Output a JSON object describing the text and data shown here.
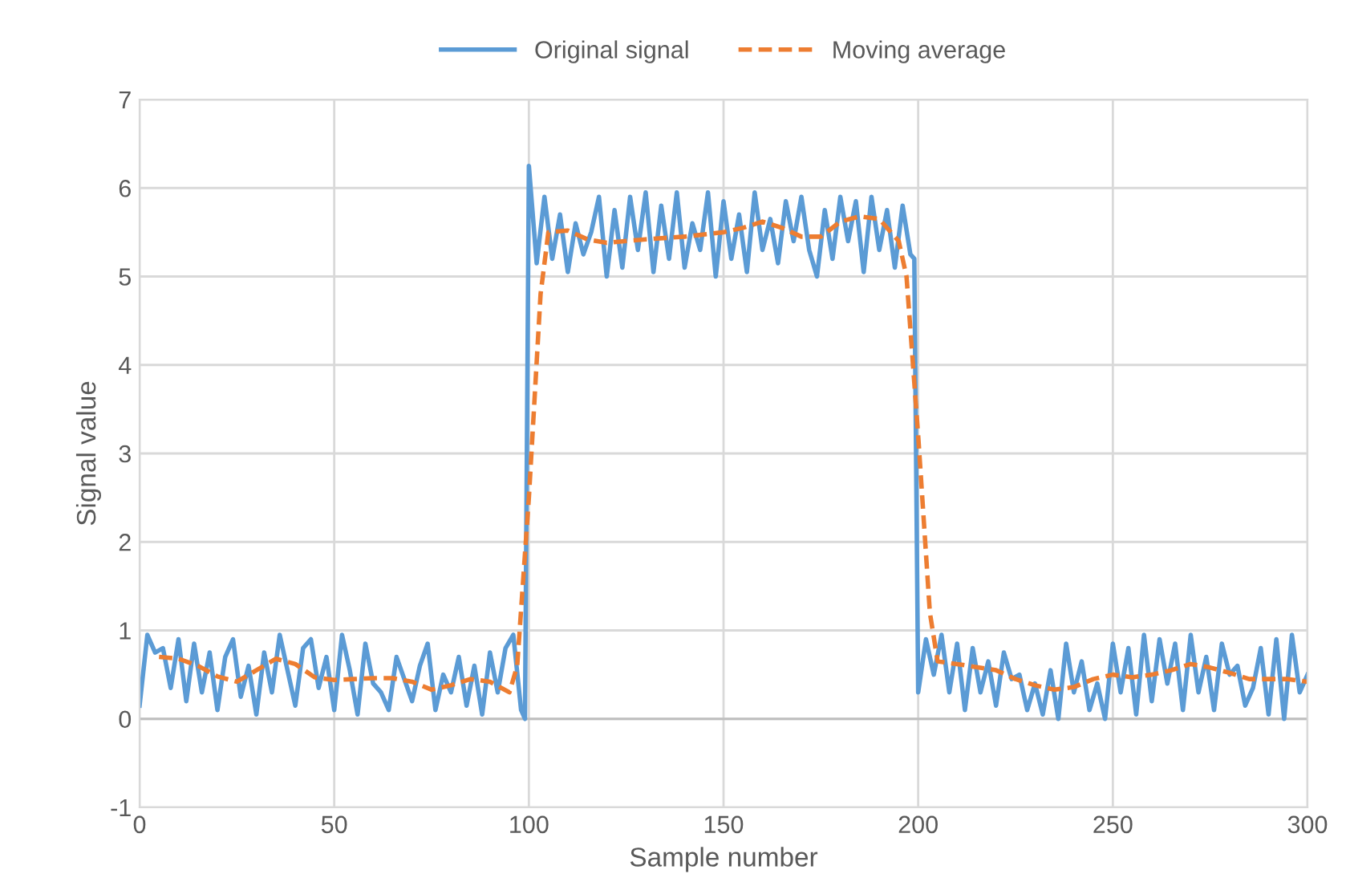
{
  "chart_data": {
    "type": "line",
    "xlabel": "Sample number",
    "ylabel": "Signal value",
    "xlim": [
      0,
      300
    ],
    "xticks": [
      0,
      50,
      100,
      150,
      200,
      250,
      300
    ],
    "ylim": [
      -1,
      7
    ],
    "yticks": [
      -1,
      0,
      1,
      2,
      3,
      4,
      5,
      6,
      7
    ],
    "grid": true,
    "legend": "top",
    "marker": "none",
    "series": [
      {
        "name": "Original signal",
        "color": "#5b9bd5",
        "line_style": "solid",
        "x": [
          0,
          2,
          4,
          6,
          8,
          10,
          12,
          14,
          16,
          18,
          20,
          22,
          24,
          26,
          28,
          30,
          32,
          34,
          36,
          38,
          40,
          42,
          44,
          46,
          48,
          50,
          52,
          54,
          56,
          58,
          60,
          62,
          64,
          66,
          68,
          70,
          72,
          74,
          76,
          78,
          80,
          82,
          84,
          86,
          88,
          90,
          92,
          94,
          96,
          98,
          99,
          100,
          102,
          104,
          106,
          108,
          110,
          112,
          114,
          116,
          118,
          120,
          122,
          124,
          126,
          128,
          130,
          132,
          134,
          136,
          138,
          140,
          142,
          144,
          146,
          148,
          150,
          152,
          154,
          156,
          158,
          160,
          162,
          164,
          166,
          168,
          170,
          172,
          174,
          176,
          178,
          180,
          182,
          184,
          186,
          188,
          190,
          192,
          194,
          196,
          198,
          199,
          200,
          202,
          204,
          206,
          208,
          210,
          212,
          214,
          216,
          218,
          220,
          222,
          224,
          226,
          228,
          230,
          232,
          234,
          236,
          238,
          240,
          242,
          244,
          246,
          248,
          250,
          252,
          254,
          256,
          258,
          260,
          262,
          264,
          266,
          268,
          270,
          272,
          274,
          276,
          278,
          280,
          282,
          284,
          286,
          288,
          290,
          292,
          294,
          296,
          298,
          300
        ],
        "values": [
          0.15,
          0.95,
          0.75,
          0.8,
          0.35,
          0.9,
          0.2,
          0.85,
          0.3,
          0.75,
          0.1,
          0.7,
          0.9,
          0.25,
          0.6,
          0.05,
          0.75,
          0.3,
          0.95,
          0.55,
          0.15,
          0.8,
          0.9,
          0.35,
          0.7,
          0.1,
          0.95,
          0.55,
          0.05,
          0.85,
          0.4,
          0.3,
          0.1,
          0.7,
          0.45,
          0.2,
          0.6,
          0.85,
          0.1,
          0.5,
          0.3,
          0.7,
          0.15,
          0.6,
          0.05,
          0.75,
          0.3,
          0.8,
          0.95,
          0.1,
          0.0,
          6.25,
          5.15,
          5.9,
          5.2,
          5.7,
          5.05,
          5.6,
          5.25,
          5.5,
          5.9,
          5.0,
          5.75,
          5.1,
          5.9,
          5.3,
          5.95,
          5.05,
          5.8,
          5.2,
          5.95,
          5.1,
          5.6,
          5.3,
          5.95,
          5.0,
          5.85,
          5.2,
          5.7,
          5.05,
          5.95,
          5.3,
          5.65,
          5.15,
          5.85,
          5.4,
          5.9,
          5.3,
          5.0,
          5.75,
          5.2,
          5.9,
          5.4,
          5.85,
          5.05,
          5.9,
          5.3,
          5.75,
          5.1,
          5.8,
          5.25,
          5.2,
          0.3,
          0.9,
          0.5,
          0.95,
          0.3,
          0.85,
          0.1,
          0.8,
          0.3,
          0.65,
          0.15,
          0.75,
          0.45,
          0.5,
          0.1,
          0.4,
          0.05,
          0.55,
          0.0,
          0.85,
          0.3,
          0.65,
          0.1,
          0.4,
          0.0,
          0.85,
          0.3,
          0.8,
          0.05,
          0.95,
          0.2,
          0.9,
          0.4,
          0.85,
          0.1,
          0.95,
          0.3,
          0.7,
          0.1,
          0.85,
          0.5,
          0.6,
          0.15,
          0.35,
          0.8,
          0.05,
          0.9,
          0.0,
          0.95,
          0.3,
          0.5
        ]
      },
      {
        "name": "Moving average",
        "color": "#ed7d31",
        "line_style": "dashed",
        "x": [
          5,
          10,
          15,
          20,
          25,
          30,
          35,
          40,
          45,
          50,
          55,
          60,
          65,
          70,
          75,
          80,
          85,
          90,
          95,
          97,
          100,
          103,
          105,
          110,
          115,
          120,
          130,
          140,
          150,
          155,
          160,
          165,
          170,
          175,
          180,
          185,
          190,
          195,
          197,
          200,
          203,
          205,
          210,
          220,
          225,
          230,
          235,
          240,
          245,
          250,
          255,
          260,
          265,
          270,
          275,
          280,
          285,
          290,
          295,
          300
        ],
        "values": [
          0.7,
          0.68,
          0.6,
          0.48,
          0.42,
          0.55,
          0.68,
          0.62,
          0.47,
          0.44,
          0.45,
          0.46,
          0.46,
          0.42,
          0.33,
          0.38,
          0.45,
          0.42,
          0.3,
          0.6,
          2.5,
          4.8,
          5.5,
          5.52,
          5.42,
          5.38,
          5.42,
          5.45,
          5.5,
          5.55,
          5.62,
          5.55,
          5.45,
          5.45,
          5.62,
          5.68,
          5.65,
          5.4,
          5.0,
          3.2,
          1.2,
          0.65,
          0.62,
          0.55,
          0.45,
          0.38,
          0.33,
          0.36,
          0.45,
          0.5,
          0.47,
          0.5,
          0.55,
          0.62,
          0.58,
          0.52,
          0.45,
          0.45,
          0.45,
          0.42
        ]
      }
    ]
  }
}
